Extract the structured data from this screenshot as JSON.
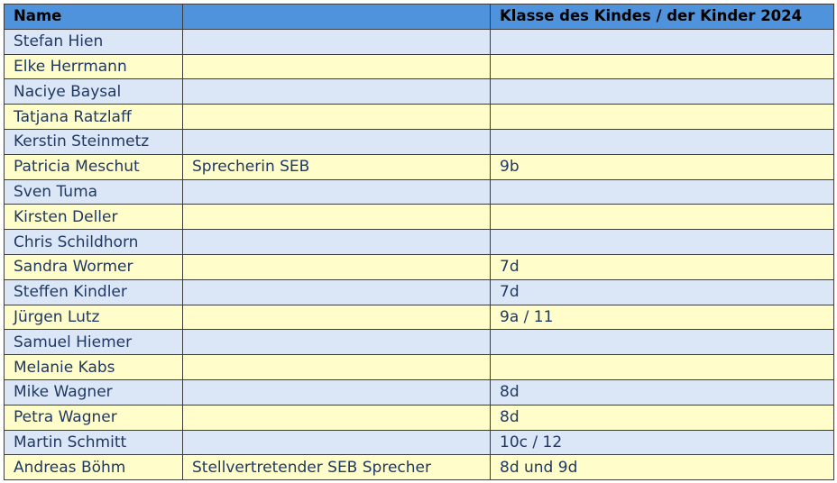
{
  "table": {
    "headers": [
      "Name",
      "",
      "Klasse des Kindes / der Kinder 2024"
    ],
    "rows": [
      [
        "Stefan Hien",
        "",
        ""
      ],
      [
        "Elke Herrmann",
        "",
        ""
      ],
      [
        "Naciye Baysal",
        "",
        ""
      ],
      [
        "Tatjana Ratzlaff",
        "",
        ""
      ],
      [
        "Kerstin Steinmetz",
        "",
        ""
      ],
      [
        "Patricia Meschut",
        "Sprecherin SEB",
        "9b"
      ],
      [
        "Sven Tuma",
        "",
        ""
      ],
      [
        "Kirsten Deller",
        "",
        ""
      ],
      [
        "Chris Schildhorn",
        "",
        ""
      ],
      [
        "Sandra Wormer",
        "",
        "7d"
      ],
      [
        "Steffen Kindler",
        "",
        "7d"
      ],
      [
        "Jürgen Lutz",
        "",
        "9a / 11"
      ],
      [
        "Samuel Hiemer",
        "",
        ""
      ],
      [
        "Melanie Kabs",
        "",
        ""
      ],
      [
        "Mike Wagner",
        "",
        "8d"
      ],
      [
        "Petra Wagner",
        "",
        "8d"
      ],
      [
        "Martin Schmitt",
        "",
        "10c / 12"
      ],
      [
        "Andreas Böhm",
        "Stellvertretender SEB Sprecher",
        "8d und 9d"
      ]
    ]
  },
  "colors": {
    "header_bg": "#4f93dc",
    "row_blue": "#dbe7f6",
    "row_yellow": "#fffdc9",
    "text": "#1f3864",
    "border": "#3c3c3c"
  }
}
